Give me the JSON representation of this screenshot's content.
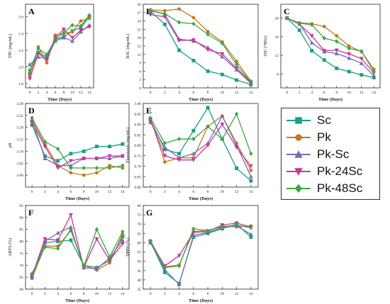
{
  "legend": {
    "items": [
      {
        "name": "Sc",
        "color": "#16a085",
        "marker": "square"
      },
      {
        "name": "Pk",
        "color": "#c47a1c",
        "marker": "circle"
      },
      {
        "name": "Pk-Sc",
        "color": "#7b6bb5",
        "marker": "triangle-up"
      },
      {
        "name": "Pk-24Sc",
        "color": "#c4389c",
        "marker": "triangle-down"
      },
      {
        "name": "Pk-48Sc",
        "color": "#39a845",
        "marker": "diamond"
      }
    ]
  },
  "chart_data": [
    {
      "panel": "A",
      "type": "line",
      "xlabel": "Time (Days)",
      "ylabel": "TPC (mg/mL)",
      "x": [
        0,
        2,
        4,
        6,
        8,
        10,
        12,
        14
      ],
      "xlim": [
        -1,
        15
      ],
      "ylim": [
        1.75,
        2.75
      ],
      "yticks": [
        1.8,
        2.0,
        2.2,
        2.4,
        2.6
      ],
      "series": [
        {
          "name": "Sc",
          "values": [
            1.92,
            2.17,
            2.12,
            2.33,
            2.36,
            2.43,
            2.47,
            2.6
          ]
        },
        {
          "name": "Pk",
          "values": [
            1.9,
            2.24,
            2.05,
            2.38,
            2.4,
            2.42,
            2.55,
            2.58
          ]
        },
        {
          "name": "Pk-Sc",
          "values": [
            2.03,
            2.12,
            2.1,
            2.31,
            2.35,
            2.31,
            2.42,
            2.5
          ]
        },
        {
          "name": "Pk-24Sc",
          "values": [
            1.86,
            2.16,
            2.09,
            2.35,
            2.45,
            2.35,
            2.44,
            2.48
          ]
        },
        {
          "name": "Pk-48Sc",
          "values": [
            1.96,
            2.22,
            2.15,
            2.33,
            2.41,
            2.5,
            2.49,
            2.62
          ]
        }
      ]
    },
    {
      "panel": "B",
      "type": "line",
      "xlabel": "Time (Days)",
      "ylabel": "RSC (mg/mL)",
      "x": [
        0,
        2,
        4,
        6,
        8,
        10,
        12,
        14
      ],
      "xlim": [
        -1,
        15
      ],
      "ylim": [
        0,
        30
      ],
      "yticks": [
        0,
        3,
        6,
        9,
        12,
        15,
        18,
        21,
        24,
        27,
        30
      ],
      "series": [
        {
          "name": "Sc",
          "values": [
            27.5,
            22.8,
            13.5,
            9.8,
            6.0,
            4.8,
            2.8,
            1.2
          ]
        },
        {
          "name": "Pk",
          "values": [
            28.0,
            27.7,
            28.3,
            25.2,
            20.2,
            16.5,
            9.5,
            2.4
          ]
        },
        {
          "name": "Pk-Sc",
          "values": [
            27.6,
            26.5,
            17.5,
            16.8,
            14.5,
            11.2,
            6.5,
            1.6
          ]
        },
        {
          "name": "Pk-24Sc",
          "values": [
            26.3,
            25.5,
            17.0,
            17.2,
            13.7,
            12.2,
            7.0,
            1.9
          ]
        },
        {
          "name": "Pk-48Sc",
          "values": [
            27.8,
            26.6,
            23.5,
            23.0,
            19.2,
            16.0,
            8.3,
            2.0
          ]
        }
      ]
    },
    {
      "panel": "C",
      "type": "line",
      "xlabel": "Time (Days)",
      "ylabel": "SSC (°Brix)",
      "x": [
        0,
        2,
        4,
        6,
        8,
        10,
        12,
        14
      ],
      "xlim": [
        -1,
        15
      ],
      "ylim": [
        5,
        23
      ],
      "yticks": [
        8,
        12,
        16,
        20
      ],
      "series": [
        {
          "name": "Sc",
          "values": [
            20.0,
            17.4,
            13.0,
            11.0,
            9.2,
            8.5,
            7.8,
            7.2
          ]
        },
        {
          "name": "Pk",
          "values": [
            20.0,
            19.0,
            18.8,
            18.2,
            16.2,
            14.0,
            12.8,
            9.0
          ]
        },
        {
          "name": "Pk-Sc",
          "values": [
            20.0,
            18.8,
            14.7,
            12.8,
            12.4,
            11.4,
            10.3,
            7.6
          ]
        },
        {
          "name": "Pk-24Sc",
          "values": [
            20.0,
            18.7,
            16.2,
            13.0,
            13.1,
            12.3,
            11.3,
            8.2
          ]
        },
        {
          "name": "Pk-48Sc",
          "values": [
            20.0,
            18.9,
            18.6,
            15.7,
            15.0,
            13.5,
            12.9,
            8.5
          ]
        }
      ]
    },
    {
      "panel": "D",
      "type": "line",
      "xlabel": "Time (Days)",
      "ylabel": "pH",
      "x": [
        0,
        2,
        4,
        6,
        8,
        10,
        12,
        14
      ],
      "xlim": [
        -1,
        15
      ],
      "ylim": [
        2.95,
        3.3
      ],
      "yticks": [
        3.0,
        3.05,
        3.1,
        3.15,
        3.2,
        3.25,
        3.3
      ],
      "series": [
        {
          "name": "Sc",
          "values": [
            3.21,
            3.08,
            3.06,
            3.09,
            3.1,
            3.12,
            3.12,
            3.13
          ]
        },
        {
          "name": "Pk",
          "values": [
            3.23,
            3.13,
            3.04,
            3.01,
            3.0,
            3.01,
            3.04,
            3.03
          ]
        },
        {
          "name": "Pk-Sc",
          "values": [
            3.23,
            3.07,
            3.04,
            3.04,
            3.07,
            3.07,
            3.07,
            3.08
          ]
        },
        {
          "name": "Pk-24Sc",
          "values": [
            3.22,
            3.12,
            3.03,
            3.06,
            3.07,
            3.07,
            3.08,
            3.08
          ]
        },
        {
          "name": "Pk-48Sc",
          "values": [
            3.24,
            3.14,
            3.11,
            3.03,
            3.03,
            3.03,
            3.03,
            3.04
          ]
        }
      ]
    },
    {
      "panel": "E",
      "type": "line",
      "xlabel": "Time (Days)",
      "ylabel": "Flavonoids (mg/mL)",
      "x": [
        0,
        2,
        4,
        6,
        8,
        10,
        12,
        14
      ],
      "xlim": [
        -1,
        15
      ],
      "ylim": [
        0.6,
        1.0
      ],
      "yticks": [
        0.6,
        0.65,
        0.7,
        0.75,
        0.8,
        0.85,
        0.9,
        0.95,
        1.0
      ],
      "series": [
        {
          "name": "Sc",
          "values": [
            0.92,
            0.78,
            0.76,
            0.87,
            0.98,
            0.83,
            0.69,
            0.63
          ]
        },
        {
          "name": "Pk",
          "values": [
            0.93,
            0.72,
            0.74,
            0.74,
            0.89,
            0.94,
            0.81,
            0.68
          ]
        },
        {
          "name": "Pk-Sc",
          "values": [
            0.91,
            0.79,
            0.74,
            0.76,
            0.81,
            0.94,
            0.8,
            0.65
          ]
        },
        {
          "name": "Pk-24Sc",
          "values": [
            0.92,
            0.75,
            0.73,
            0.73,
            0.8,
            0.9,
            0.79,
            0.7
          ]
        },
        {
          "name": "Pk-48Sc",
          "values": [
            0.93,
            0.81,
            0.83,
            0.83,
            0.89,
            0.83,
            0.95,
            0.76
          ]
        }
      ]
    },
    {
      "panel": "F",
      "type": "line",
      "xlabel": "Time (Days)",
      "ylabel": "ABTS (%)",
      "x": [
        0,
        2,
        4,
        6,
        8,
        10,
        12,
        14
      ],
      "xlim": [
        -1,
        15
      ],
      "ylim": [
        60,
        95
      ],
      "yticks": [
        60,
        65,
        70,
        75,
        80,
        85,
        90,
        95
      ],
      "series": [
        {
          "name": "Sc",
          "values": [
            65.0,
            79.5,
            80.0,
            80.5,
            70.0,
            69.0,
            72.0,
            82.0
          ]
        },
        {
          "name": "Pk",
          "values": [
            64.5,
            78.0,
            78.0,
            84.5,
            70.0,
            68.0,
            71.0,
            83.0
          ]
        },
        {
          "name": "Pk-Sc",
          "values": [
            65.0,
            80.0,
            83.5,
            86.0,
            69.0,
            68.5,
            73.0,
            80.5
          ]
        },
        {
          "name": "Pk-24Sc",
          "values": [
            65.5,
            81.0,
            80.5,
            91.0,
            69.0,
            81.0,
            72.0,
            79.0
          ]
        },
        {
          "name": "Pk-48Sc",
          "values": [
            66.5,
            77.5,
            77.0,
            85.0,
            69.5,
            85.0,
            73.5,
            84.0
          ]
        }
      ]
    },
    {
      "panel": "G",
      "type": "line",
      "xlabel": "Time (Days)",
      "ylabel": "DPPH (%)",
      "x": [
        0,
        2,
        4,
        6,
        8,
        10,
        12,
        14
      ],
      "xlim": [
        -1,
        15
      ],
      "ylim": [
        35,
        80
      ],
      "yticks": [
        35,
        40,
        45,
        50,
        55,
        60,
        65,
        70,
        75,
        80
      ],
      "series": [
        {
          "name": "Sc",
          "values": [
            60.5,
            44.0,
            38.0,
            63.0,
            65.0,
            67.5,
            70.0,
            63.0
          ]
        },
        {
          "name": "Pk",
          "values": [
            61.0,
            47.0,
            48.0,
            66.0,
            66.5,
            69.0,
            68.5,
            69.0
          ]
        },
        {
          "name": "Pk-Sc",
          "values": [
            60.0,
            45.5,
            37.5,
            64.0,
            65.5,
            68.0,
            69.0,
            64.5
          ]
        },
        {
          "name": "Pk-24Sc",
          "values": [
            60.5,
            47.5,
            53.0,
            65.5,
            66.0,
            69.5,
            70.5,
            68.5
          ]
        },
        {
          "name": "Pk-48Sc",
          "values": [
            61.0,
            46.5,
            47.5,
            67.5,
            66.5,
            68.5,
            69.5,
            68.0
          ]
        }
      ]
    }
  ]
}
